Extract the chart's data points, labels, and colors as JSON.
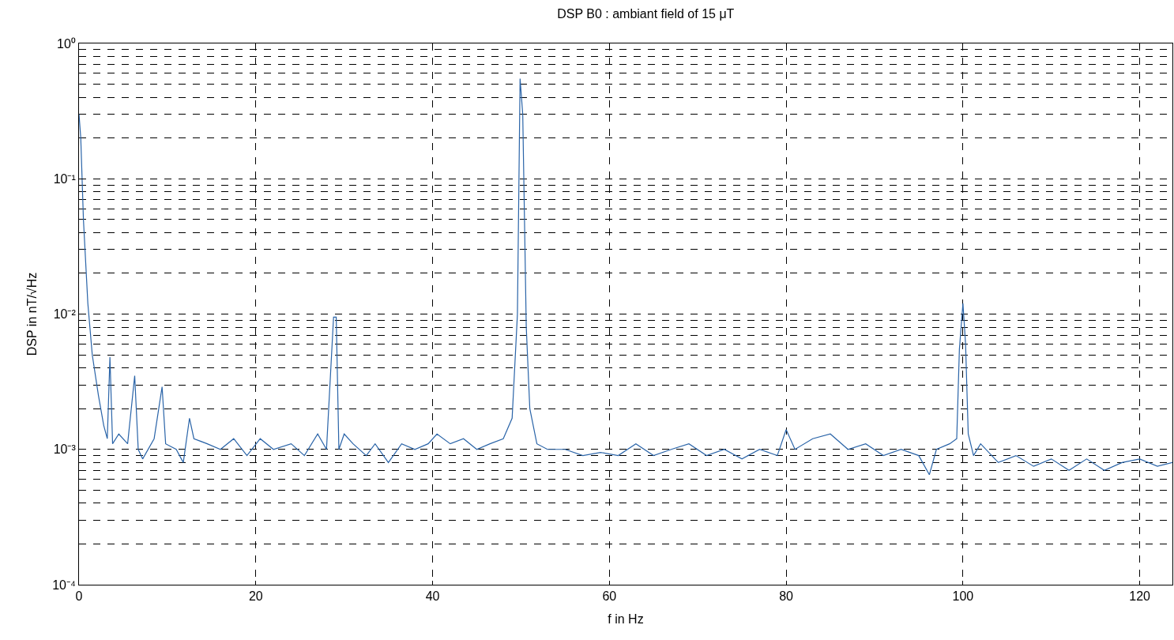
{
  "chart_data": {
    "type": "line",
    "title": "DSP B0 : ambiant field of 15 μT",
    "xlabel": "f in Hz",
    "ylabel": "DSP in nT/√Hz",
    "log": "y",
    "grid": true,
    "line_style": "solid",
    "xlim": [
      0,
      123.7
    ],
    "xticks": [
      0,
      20,
      40,
      60,
      80,
      100,
      120
    ],
    "ylim": [
      0.0001,
      1
    ],
    "yticks": [
      {
        "value": 0.0001,
        "label": "10⁻⁴"
      },
      {
        "value": 0.001,
        "label": "10⁻³"
      },
      {
        "value": 0.01,
        "label": "10⁻²"
      },
      {
        "value": 0.1,
        "label": "10⁻¹"
      },
      {
        "value": 1,
        "label": "10⁰"
      }
    ],
    "x": [
      0,
      0.2,
      0.5,
      1.0,
      1.5,
      2.2,
      2.8,
      3.2,
      3.5,
      3.8,
      4.5,
      5.5,
      6.3,
      6.7,
      7.2,
      8.5,
      9.4,
      9.8,
      11,
      11.8,
      12.5,
      13,
      14.5,
      16,
      17.5,
      19,
      20.5,
      22,
      24,
      25.5,
      27,
      28,
      28.8,
      29.1,
      29.4,
      30,
      31,
      32.5,
      33.5,
      35,
      36.5,
      38,
      39.5,
      40.5,
      42,
      43.5,
      45,
      46.5,
      48,
      49,
      49.6,
      49.9,
      50.2,
      50.6,
      51,
      51.8,
      53,
      55,
      57,
      59,
      61,
      63,
      65,
      67,
      69,
      71,
      73,
      75,
      77,
      79,
      80,
      81,
      83,
      85,
      87,
      89,
      91,
      93,
      95,
      96.2,
      97,
      98.5,
      99.3,
      99.6,
      100,
      100.3,
      100.6,
      101.2,
      102,
      104,
      106,
      108,
      110,
      112,
      114,
      116,
      118,
      120,
      122,
      123.7
    ],
    "series": [
      {
        "color": "#2a64a8",
        "values": [
          0.3,
          0.2,
          0.05,
          0.012,
          0.005,
          0.0025,
          0.0015,
          0.0012,
          0.0048,
          0.0011,
          0.0013,
          0.0011,
          0.0035,
          0.001,
          0.00085,
          0.0012,
          0.0029,
          0.0011,
          0.001,
          0.0008,
          0.0017,
          0.0012,
          0.0011,
          0.001,
          0.0012,
          0.0009,
          0.0012,
          0.001,
          0.0011,
          0.0009,
          0.0013,
          0.001,
          0.0095,
          0.0095,
          0.001,
          0.0013,
          0.0011,
          0.0009,
          0.0011,
          0.0008,
          0.0011,
          0.001,
          0.0011,
          0.0013,
          0.0011,
          0.0012,
          0.001,
          0.0011,
          0.0012,
          0.0017,
          0.01,
          0.55,
          0.3,
          0.008,
          0.002,
          0.0011,
          0.001,
          0.001,
          0.0009,
          0.00095,
          0.0009,
          0.0011,
          0.0009,
          0.001,
          0.0011,
          0.0009,
          0.001,
          0.00085,
          0.001,
          0.0009,
          0.0014,
          0.001,
          0.0012,
          0.0013,
          0.001,
          0.0011,
          0.0009,
          0.001,
          0.0009,
          0.00065,
          0.001,
          0.0011,
          0.0012,
          0.0055,
          0.012,
          0.006,
          0.0013,
          0.0009,
          0.0011,
          0.0008,
          0.0009,
          0.00075,
          0.00085,
          0.0007,
          0.00085,
          0.0007,
          0.0008,
          0.00085,
          0.00075,
          0.0008
        ]
      }
    ]
  }
}
